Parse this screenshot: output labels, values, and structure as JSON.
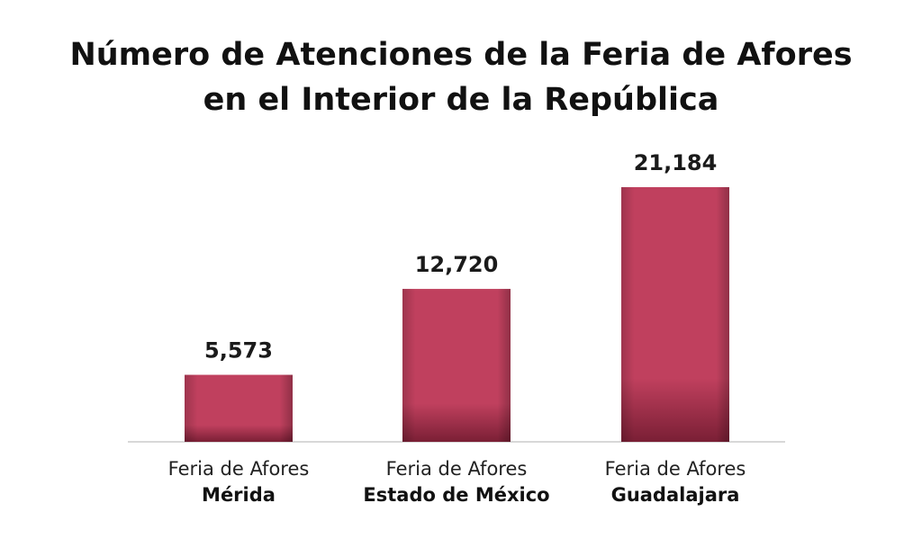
{
  "title_lines": [
    "Número de Atenciones de la Feria de Afores",
    "en el Interior de la República"
  ],
  "colors": {
    "bar": "#c0405e",
    "bar_dark": "#7a1f35",
    "baseline": "#d8d8d8"
  },
  "chart_data": {
    "type": "bar",
    "title": "Número de Atenciones de la Feria de Afores en el Interior de la República",
    "categories": [
      [
        "Feria de Afores",
        "Mérida"
      ],
      [
        "Feria de Afores",
        "Estado de México"
      ],
      [
        "Feria de Afores",
        "Guadalajara"
      ]
    ],
    "values": [
      5573,
      12720,
      21184
    ],
    "value_labels": [
      "5,573",
      "12,720",
      "21,184"
    ],
    "xlabel": "",
    "ylabel": "",
    "ylim": [
      0,
      21184
    ],
    "grid": false,
    "legend": "none"
  }
}
